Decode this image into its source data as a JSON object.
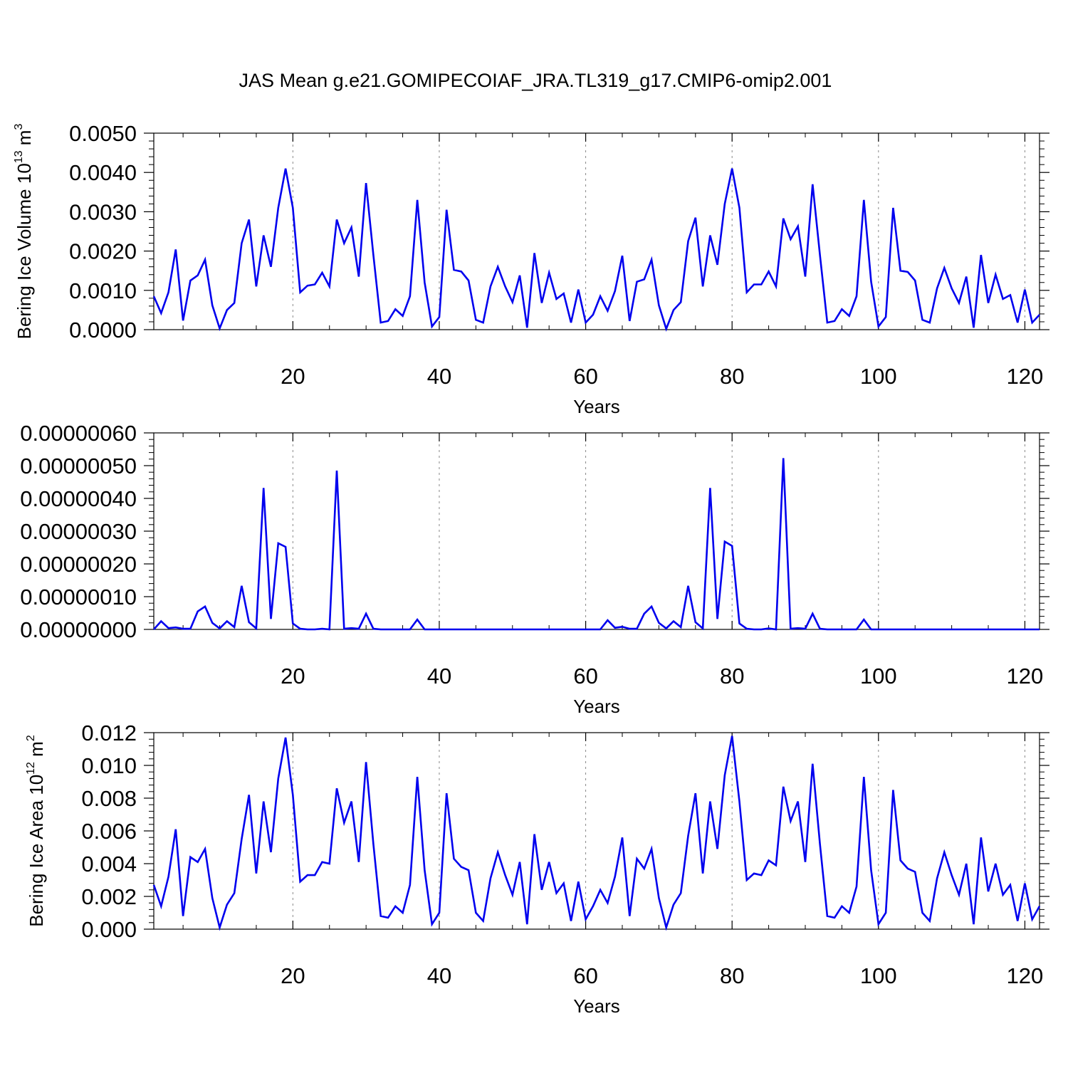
{
  "title": "JAS Mean g.e21.GOMIPECOIAF_JRA.TL319_g17.CMIP6-omip2.001",
  "chart_data": [
    {
      "type": "line",
      "xlabel": "Years",
      "ylabel_parts": [
        "Bering Ice Volume 10",
        "13",
        " m",
        "3"
      ],
      "xlim": [
        1,
        122
      ],
      "ylim": [
        0,
        0.005
      ],
      "xticks": [
        20,
        40,
        60,
        80,
        100,
        120
      ],
      "xtick_labels": [
        "20",
        "40",
        "60",
        "80",
        "100",
        "120"
      ],
      "yticks": [
        0,
        0.001,
        0.002,
        0.003,
        0.004,
        0.005
      ],
      "ytick_labels": [
        "0.0000",
        "0.0010",
        "0.0020",
        "0.0030",
        "0.0040",
        "0.0050"
      ],
      "series_color": "#0000ee",
      "y": [
        0.00085,
        0.00042,
        0.00095,
        0.00204,
        0.00023,
        0.00125,
        0.00138,
        0.00178,
        0.00062,
        3e-05,
        0.0005,
        0.00068,
        0.0022,
        0.0028,
        0.0011,
        0.0024,
        0.0016,
        0.0031,
        0.0041,
        0.0031,
        0.00095,
        0.00112,
        0.00115,
        0.00145,
        0.0011,
        0.0028,
        0.0022,
        0.0026,
        0.00135,
        0.00373,
        0.0019,
        0.00018,
        0.00022,
        0.00052,
        0.00035,
        0.00085,
        0.0033,
        0.0012,
        8e-05,
        0.00032,
        0.00305,
        0.00152,
        0.00148,
        0.00125,
        0.00025,
        0.00018,
        0.0011,
        0.0016,
        0.0011,
        0.0007,
        0.00138,
        5e-05,
        0.00195,
        0.00068,
        0.00145,
        0.00078,
        0.00092,
        0.00018,
        0.00102,
        0.00018,
        0.00038,
        0.00085,
        0.00048,
        0.00098,
        0.00188,
        0.00022,
        0.00122,
        0.00128,
        0.00178,
        0.00062,
        2e-05,
        0.0005,
        0.0007,
        0.00225,
        0.00285,
        0.0011,
        0.0024,
        0.00165,
        0.0032,
        0.0041,
        0.0031,
        0.00095,
        0.00115,
        0.00115,
        0.00148,
        0.0011,
        0.00283,
        0.0023,
        0.00263,
        0.00135,
        0.0037,
        0.0019,
        0.00018,
        0.00022,
        0.00052,
        0.00035,
        0.00085,
        0.0033,
        0.00122,
        8e-05,
        0.00032,
        0.0031,
        0.0015,
        0.00147,
        0.00125,
        0.00025,
        0.00018,
        0.00105,
        0.00157,
        0.00105,
        0.00068,
        0.00135,
        5e-05,
        0.0019,
        0.00068,
        0.0014,
        0.00078,
        0.00088,
        0.00018,
        0.00102,
        0.00018,
        0.00038
      ]
    },
    {
      "type": "line",
      "xlabel": "Years",
      "ylabel_parts": [],
      "xlim": [
        1,
        122
      ],
      "ylim": [
        0,
        6e-07
      ],
      "xticks": [
        20,
        40,
        60,
        80,
        100,
        120
      ],
      "xtick_labels": [
        "20",
        "40",
        "60",
        "80",
        "100",
        "120"
      ],
      "yticks": [
        0,
        1e-07,
        2e-07,
        3e-07,
        4e-07,
        5e-07,
        6e-07
      ],
      "ytick_labels": [
        "0.00000000",
        "0.00000010",
        "0.00000020",
        "0.00000030",
        "0.00000040",
        "0.00000050",
        "0.00000060"
      ],
      "series_color": "#0000ee",
      "y": [
        0,
        2.5e-08,
        4e-09,
        6e-09,
        2e-09,
        2e-09,
        5.5e-08,
        7e-08,
        2e-08,
        3e-09,
        2.5e-08,
        7e-09,
        1.33e-07,
        2.2e-08,
        3e-09,
        4.32e-07,
        3.2e-08,
        2.63e-07,
        2.52e-07,
        1.8e-08,
        2e-09,
        0,
        0,
        2e-09,
        0,
        4.85e-07,
        2e-09,
        4e-09,
        2e-09,
        4.8e-08,
        2e-09,
        0,
        0,
        0,
        0,
        0,
        3e-08,
        0,
        0,
        0,
        0,
        0,
        0,
        0,
        0,
        0,
        0,
        0,
        0,
        0,
        0,
        0,
        0,
        0,
        0,
        0,
        0,
        0,
        0,
        0,
        0,
        0,
        2.8e-08,
        5e-09,
        8e-09,
        2e-09,
        2e-09,
        4.8e-08,
        7e-08,
        2e-08,
        3e-09,
        2.5e-08,
        7e-09,
        1.33e-07,
        2.2e-08,
        3e-09,
        4.32e-07,
        3.2e-08,
        2.68e-07,
        2.55e-07,
        1.8e-08,
        2e-09,
        0,
        0,
        3e-09,
        0,
        5.23e-07,
        2e-09,
        4e-09,
        2e-09,
        4.8e-08,
        2e-09,
        0,
        0,
        0,
        0,
        0,
        3e-08,
        0,
        0,
        0,
        0,
        0,
        0,
        0,
        0,
        0,
        0,
        0,
        0,
        0,
        0,
        0,
        0,
        0,
        0,
        0,
        0,
        0,
        0,
        0,
        0
      ]
    },
    {
      "type": "line",
      "xlabel": "Years",
      "ylabel_parts": [
        "Bering Ice Area 10",
        "12",
        " m",
        "2"
      ],
      "xlim": [
        1,
        122
      ],
      "ylim": [
        0,
        0.012
      ],
      "xticks": [
        20,
        40,
        60,
        80,
        100,
        120
      ],
      "xtick_labels": [
        "20",
        "40",
        "60",
        "80",
        "100",
        "120"
      ],
      "yticks": [
        0,
        0.002,
        0.004,
        0.006,
        0.008,
        0.01,
        0.012
      ],
      "ytick_labels": [
        "0.000",
        "0.002",
        "0.004",
        "0.006",
        "0.008",
        "0.010",
        "0.012"
      ],
      "series_color": "#0000ee",
      "y": [
        0.0027,
        0.0014,
        0.0032,
        0.0061,
        0.0008,
        0.0044,
        0.0041,
        0.0049,
        0.0019,
        0.0001,
        0.0015,
        0.0022,
        0.0055,
        0.0082,
        0.0034,
        0.0078,
        0.0047,
        0.0092,
        0.0117,
        0.0082,
        0.0029,
        0.0033,
        0.0033,
        0.0041,
        0.004,
        0.0086,
        0.0065,
        0.0078,
        0.0041,
        0.0102,
        0.0052,
        0.0008,
        0.0007,
        0.0014,
        0.001,
        0.0027,
        0.0093,
        0.0036,
        0.0003,
        0.001,
        0.0083,
        0.0043,
        0.0038,
        0.0036,
        0.001,
        0.0005,
        0.0031,
        0.0047,
        0.0033,
        0.0021,
        0.0041,
        0.0003,
        0.0058,
        0.0024,
        0.0041,
        0.0022,
        0.0028,
        0.0005,
        0.0029,
        0.0006,
        0.0014,
        0.0024,
        0.0016,
        0.0032,
        0.0056,
        0.0008,
        0.0043,
        0.0037,
        0.0049,
        0.0019,
        0.0001,
        0.0015,
        0.0022,
        0.0057,
        0.0083,
        0.0034,
        0.0078,
        0.0049,
        0.0094,
        0.0118,
        0.0078,
        0.003,
        0.0034,
        0.0033,
        0.0042,
        0.0039,
        0.0087,
        0.0066,
        0.0078,
        0.0041,
        0.0101,
        0.0052,
        0.0008,
        0.0007,
        0.0014,
        0.001,
        0.0026,
        0.0093,
        0.0036,
        0.0003,
        0.001,
        0.0085,
        0.0042,
        0.0037,
        0.0035,
        0.001,
        0.0005,
        0.0031,
        0.0047,
        0.0033,
        0.0021,
        0.004,
        0.0003,
        0.0056,
        0.0023,
        0.004,
        0.0021,
        0.0027,
        0.0005,
        0.0028,
        0.0006,
        0.0014
      ]
    }
  ]
}
